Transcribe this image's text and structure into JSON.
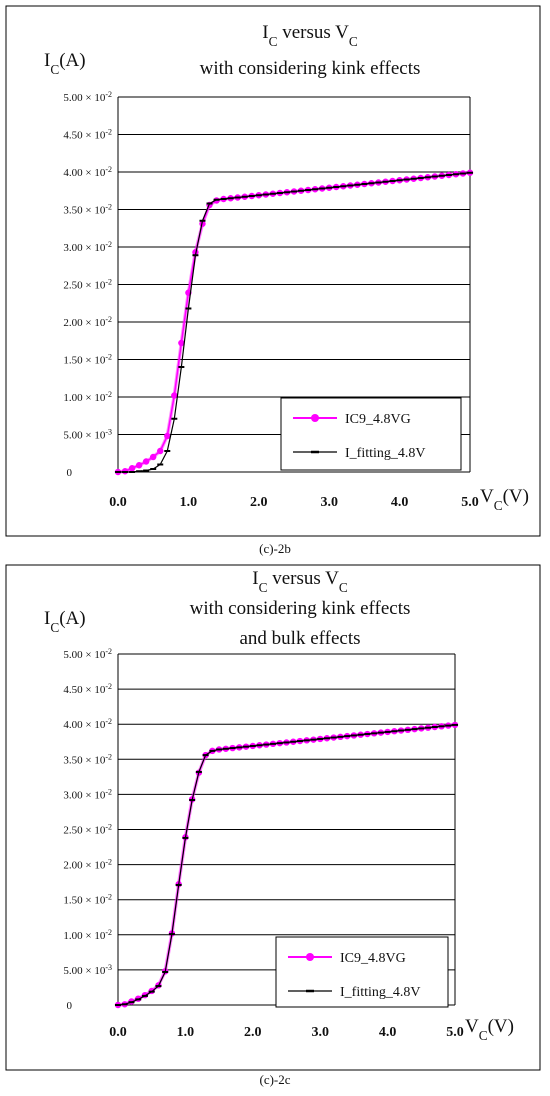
{
  "panels": [
    {
      "caption": "(c)-2b",
      "chart_data": {
        "type": "line",
        "title_lines": [
          "I_C versus V_C",
          "with considering kink effects"
        ],
        "ylabel": "I_C(A)",
        "xlabel": "V_C(V)",
        "xlim": [
          0,
          5
        ],
        "ylim": [
          0,
          0.05
        ],
        "x_ticks": [
          "0.0",
          "1.0",
          "2.0",
          "3.0",
          "4.0",
          "5.0"
        ],
        "y_ticks": [
          {
            "v": 0,
            "m": "0",
            "e": ""
          },
          {
            "v": 0.005,
            "m": "5.00 × 10",
            "e": "-3"
          },
          {
            "v": 0.01,
            "m": "1.00 × 10",
            "e": "-2"
          },
          {
            "v": 0.015,
            "m": "1.50 × 10",
            "e": "-2"
          },
          {
            "v": 0.02,
            "m": "2.00 × 10",
            "e": "-2"
          },
          {
            "v": 0.025,
            "m": "2.50 × 10",
            "e": "-2"
          },
          {
            "v": 0.03,
            "m": "3.00 × 10",
            "e": "-2"
          },
          {
            "v": 0.035,
            "m": "3.50 × 10",
            "e": "-2"
          },
          {
            "v": 0.04,
            "m": "4.00 × 10",
            "e": "-2"
          },
          {
            "v": 0.045,
            "m": "4.50 × 10",
            "e": "-2"
          },
          {
            "v": 0.05,
            "m": "5.00 × 10",
            "e": "-2"
          }
        ],
        "grid": "horizontal",
        "legend_position": "bottom-right",
        "series": [
          {
            "name": "IC9_4.8VG",
            "color": "#ff00ff",
            "marker": "circle",
            "x": [
              0.0,
              0.1,
              0.2,
              0.3,
              0.4,
              0.5,
              0.6,
              0.7,
              0.8,
              0.9,
              1.0,
              1.1,
              1.2,
              1.3,
              1.4,
              1.5,
              1.6,
              1.7,
              1.8,
              1.9,
              2.0,
              2.1,
              2.2,
              2.3,
              2.4,
              2.5,
              2.6,
              2.7,
              2.8,
              2.9,
              3.0,
              3.1,
              3.2,
              3.3,
              3.4,
              3.5,
              3.6,
              3.7,
              3.8,
              3.9,
              4.0,
              4.1,
              4.2,
              4.3,
              4.4,
              4.5,
              4.6,
              4.7,
              4.8,
              4.9,
              5.0
            ],
            "y": [
              0,
              0.0001,
              0.0005,
              0.0009,
              0.0014,
              0.002,
              0.0028,
              0.0048,
              0.0102,
              0.0172,
              0.0239,
              0.0293,
              0.0331,
              0.0356,
              0.0362,
              0.0364,
              0.0365,
              0.0366,
              0.0367,
              0.0368,
              0.0369,
              0.037,
              0.0371,
              0.0372,
              0.0373,
              0.0374,
              0.0375,
              0.0376,
              0.0377,
              0.0378,
              0.0379,
              0.038,
              0.0381,
              0.0382,
              0.0383,
              0.0384,
              0.0385,
              0.0386,
              0.0387,
              0.0388,
              0.0389,
              0.039,
              0.0391,
              0.0392,
              0.0393,
              0.0394,
              0.0395,
              0.0396,
              0.0397,
              0.0398,
              0.0399
            ]
          },
          {
            "name": "I_fitting_4.8V",
            "color": "#000000",
            "marker": "dash",
            "x": [
              0.0,
              0.1,
              0.2,
              0.3,
              0.4,
              0.5,
              0.6,
              0.7,
              0.8,
              0.9,
              1.0,
              1.1,
              1.2,
              1.3,
              1.4,
              1.5,
              1.6,
              1.7,
              1.8,
              1.9,
              2.0,
              2.1,
              2.2,
              2.3,
              2.4,
              2.5,
              2.6,
              2.7,
              2.8,
              2.9,
              3.0,
              3.1,
              3.2,
              3.3,
              3.4,
              3.5,
              3.6,
              3.7,
              3.8,
              3.9,
              4.0,
              4.1,
              4.2,
              4.3,
              4.4,
              4.5,
              4.6,
              4.7,
              4.8,
              4.9,
              5.0
            ],
            "y": [
              0,
              0,
              0,
              0.0001,
              0.0002,
              0.0004,
              0.001,
              0.0028,
              0.0071,
              0.014,
              0.0218,
              0.0289,
              0.0335,
              0.0358,
              0.0363,
              0.0364,
              0.0365,
              0.0366,
              0.0367,
              0.0368,
              0.0369,
              0.037,
              0.0371,
              0.0372,
              0.0373,
              0.0374,
              0.0375,
              0.0376,
              0.0377,
              0.0378,
              0.0379,
              0.038,
              0.0381,
              0.0382,
              0.0383,
              0.0384,
              0.0385,
              0.0386,
              0.0387,
              0.0388,
              0.0389,
              0.039,
              0.0391,
              0.0392,
              0.0393,
              0.0394,
              0.0395,
              0.0396,
              0.0397,
              0.0398,
              0.0399
            ]
          }
        ]
      }
    },
    {
      "caption": "(c)-2c",
      "chart_data": {
        "type": "line",
        "title_lines": [
          "I_C versus V_C",
          "with considering kink effects",
          "and bulk effects"
        ],
        "ylabel": "I_C(A)",
        "xlabel": "V_C(V)",
        "xlim": [
          0,
          5
        ],
        "ylim": [
          0,
          0.05
        ],
        "x_ticks": [
          "0.0",
          "1.0",
          "2.0",
          "3.0",
          "4.0",
          "5.0"
        ],
        "y_ticks": [
          {
            "v": 0,
            "m": "0",
            "e": ""
          },
          {
            "v": 0.005,
            "m": "5.00 × 10",
            "e": "-3"
          },
          {
            "v": 0.01,
            "m": "1.00 × 10",
            "e": "-2"
          },
          {
            "v": 0.015,
            "m": "1.50 × 10",
            "e": "-2"
          },
          {
            "v": 0.02,
            "m": "2.00 × 10",
            "e": "-2"
          },
          {
            "v": 0.025,
            "m": "2.50 × 10",
            "e": "-2"
          },
          {
            "v": 0.03,
            "m": "3.00 × 10",
            "e": "-2"
          },
          {
            "v": 0.035,
            "m": "3.50 × 10",
            "e": "-2"
          },
          {
            "v": 0.04,
            "m": "4.00 × 10",
            "e": "-2"
          },
          {
            "v": 0.045,
            "m": "4.50 × 10",
            "e": "-2"
          },
          {
            "v": 0.05,
            "m": "5.00 × 10",
            "e": "-2"
          }
        ],
        "grid": "horizontal",
        "legend_position": "bottom-right",
        "series": [
          {
            "name": "IC9_4.8VG",
            "color": "#ff00ff",
            "marker": "circle",
            "x": [
              0.0,
              0.1,
              0.2,
              0.3,
              0.4,
              0.5,
              0.6,
              0.7,
              0.8,
              0.9,
              1.0,
              1.1,
              1.2,
              1.3,
              1.4,
              1.5,
              1.6,
              1.7,
              1.8,
              1.9,
              2.0,
              2.1,
              2.2,
              2.3,
              2.4,
              2.5,
              2.6,
              2.7,
              2.8,
              2.9,
              3.0,
              3.1,
              3.2,
              3.3,
              3.4,
              3.5,
              3.6,
              3.7,
              3.8,
              3.9,
              4.0,
              4.1,
              4.2,
              4.3,
              4.4,
              4.5,
              4.6,
              4.7,
              4.8,
              4.9,
              5.0
            ],
            "y": [
              0,
              0.0001,
              0.0005,
              0.0009,
              0.0014,
              0.002,
              0.0028,
              0.0048,
              0.0102,
              0.0172,
              0.0239,
              0.0293,
              0.0331,
              0.0356,
              0.0362,
              0.0364,
              0.0365,
              0.0366,
              0.0367,
              0.0368,
              0.0369,
              0.037,
              0.0371,
              0.0372,
              0.0373,
              0.0374,
              0.0375,
              0.0376,
              0.0377,
              0.0378,
              0.0379,
              0.038,
              0.0381,
              0.0382,
              0.0383,
              0.0384,
              0.0385,
              0.0386,
              0.0387,
              0.0388,
              0.0389,
              0.039,
              0.0391,
              0.0392,
              0.0393,
              0.0394,
              0.0395,
              0.0396,
              0.0397,
              0.0398,
              0.0399
            ]
          },
          {
            "name": "I_fitting_4.8V",
            "color": "#000000",
            "marker": "dash",
            "x": [
              0.0,
              0.1,
              0.2,
              0.3,
              0.4,
              0.5,
              0.6,
              0.7,
              0.8,
              0.9,
              1.0,
              1.1,
              1.2,
              1.3,
              1.4,
              1.5,
              1.6,
              1.7,
              1.8,
              1.9,
              2.0,
              2.1,
              2.2,
              2.3,
              2.4,
              2.5,
              2.6,
              2.7,
              2.8,
              2.9,
              3.0,
              3.1,
              3.2,
              3.3,
              3.4,
              3.5,
              3.6,
              3.7,
              3.8,
              3.9,
              4.0,
              4.1,
              4.2,
              4.3,
              4.4,
              4.5,
              4.6,
              4.7,
              4.8,
              4.9,
              5.0
            ],
            "y": [
              0,
              0.0001,
              0.0004,
              0.0008,
              0.0013,
              0.0019,
              0.0027,
              0.0047,
              0.0101,
              0.0171,
              0.0238,
              0.0292,
              0.0332,
              0.0356,
              0.0362,
              0.0364,
              0.0365,
              0.0366,
              0.0367,
              0.0368,
              0.0369,
              0.037,
              0.0371,
              0.0372,
              0.0373,
              0.0374,
              0.0375,
              0.0376,
              0.0377,
              0.0378,
              0.0379,
              0.038,
              0.0381,
              0.0382,
              0.0383,
              0.0384,
              0.0385,
              0.0386,
              0.0387,
              0.0388,
              0.0389,
              0.039,
              0.0391,
              0.0392,
              0.0393,
              0.0394,
              0.0395,
              0.0396,
              0.0397,
              0.0398,
              0.0399
            ]
          }
        ]
      }
    }
  ]
}
